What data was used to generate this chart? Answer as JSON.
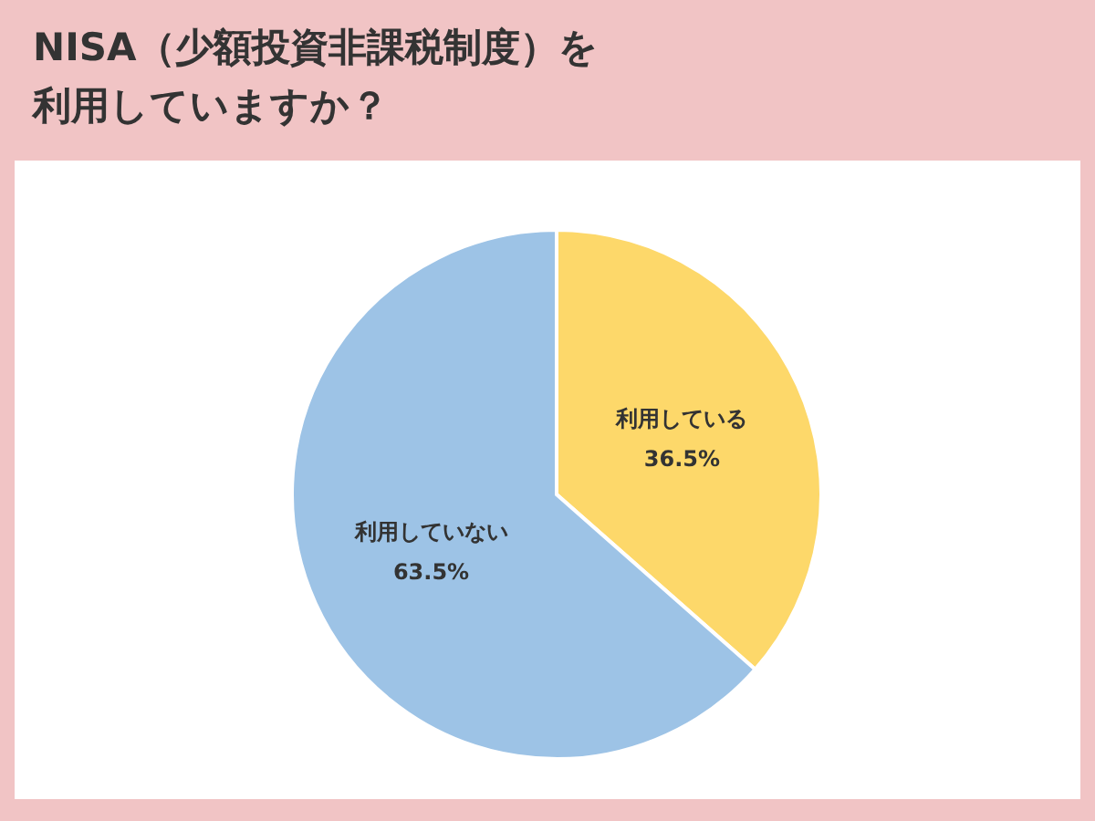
{
  "chart_data": {
    "type": "pie",
    "title": "NISA（少額投資非課税制度）を利用していますか？",
    "categories": [
      "利用している",
      "利用していない"
    ],
    "values": [
      36.5,
      63.5
    ],
    "colors": [
      "#fdd86a",
      "#9dc3e6"
    ],
    "value_labels": [
      "36.5%",
      "63.5%"
    ]
  }
}
